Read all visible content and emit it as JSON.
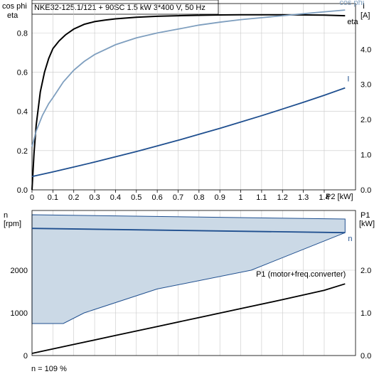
{
  "title": "NKE32-125.1/121 + 90SC   1.5 kW   3*400 V, 50 Hz",
  "colors": {
    "eta": "#000000",
    "cosphi": "#7f9fbf",
    "current": "#1f4f8f",
    "speed": "#1f4f8f",
    "speed_fill": "#cbd9e6",
    "power": "#000000",
    "grid": "#c8c8c8",
    "axis": "#000000"
  },
  "chart_data": [
    {
      "type": "line",
      "name": "top",
      "y_left_title_1": "cos phi",
      "y_left_title_2": "eta",
      "y_right_title_1": "I",
      "y_right_title_2": "[A]",
      "x_title": "P2 [kW]",
      "x_ticks": [
        "0",
        "0.1",
        "0.2",
        "0.3",
        "0.4",
        "0.5",
        "0.6",
        "0.7",
        "0.8",
        "0.9",
        "1",
        "1.1",
        "1.2",
        "1.3",
        "1.4"
      ],
      "y_left_ticks": [
        "0.0",
        "0.2",
        "0.4",
        "0.6",
        "0.8"
      ],
      "y_right_ticks": [
        "0.0",
        "1.0",
        "2.0",
        "3.0",
        "4.0"
      ],
      "xlim": [
        0,
        1.55
      ],
      "ylim_left": [
        0,
        0.95
      ],
      "ylim_right": [
        0,
        5.3
      ],
      "grid": true,
      "series": [
        {
          "name": "eta",
          "axis": "left",
          "x": [
            0,
            0.01,
            0.02,
            0.04,
            0.06,
            0.08,
            0.1,
            0.13,
            0.16,
            0.2,
            0.25,
            0.3,
            0.35,
            0.4,
            0.5,
            0.6,
            0.7,
            0.8,
            0.9,
            1.0,
            1.1,
            1.2,
            1.3,
            1.4,
            1.5
          ],
          "y": [
            0.0,
            0.19,
            0.33,
            0.5,
            0.6,
            0.67,
            0.72,
            0.76,
            0.79,
            0.82,
            0.844,
            0.858,
            0.866,
            0.872,
            0.88,
            0.885,
            0.888,
            0.89,
            0.892,
            0.893,
            0.893,
            0.893,
            0.892,
            0.891,
            0.888
          ]
        },
        {
          "name": "cos phi",
          "axis": "left",
          "x": [
            0,
            0.02,
            0.05,
            0.08,
            0.1,
            0.15,
            0.2,
            0.25,
            0.3,
            0.4,
            0.5,
            0.6,
            0.7,
            0.8,
            0.9,
            1.0,
            1.1,
            1.2,
            1.3,
            1.4,
            1.5
          ],
          "y": [
            0.22,
            0.3,
            0.38,
            0.44,
            0.47,
            0.55,
            0.61,
            0.655,
            0.69,
            0.74,
            0.775,
            0.8,
            0.82,
            0.84,
            0.855,
            0.868,
            0.878,
            0.888,
            0.898,
            0.908,
            0.917
          ]
        },
        {
          "name": "I",
          "axis": "right",
          "x": [
            0,
            0.1,
            0.2,
            0.3,
            0.4,
            0.5,
            0.6,
            0.7,
            0.8,
            0.9,
            1.0,
            1.1,
            1.2,
            1.3,
            1.4,
            1.5
          ],
          "y": [
            0.38,
            0.51,
            0.65,
            0.79,
            0.94,
            1.09,
            1.25,
            1.41,
            1.58,
            1.75,
            1.93,
            2.11,
            2.3,
            2.49,
            2.69,
            2.9
          ]
        }
      ]
    },
    {
      "type": "line",
      "name": "bottom",
      "y_left_title_1": "n",
      "y_left_title_2": "[rpm]",
      "y_right_title_1": "P1",
      "y_right_title_2": "[kW]",
      "y_left_ticks": [
        "0",
        "1000",
        "2000"
      ],
      "y_left_tick_values": [
        0,
        1000,
        2000
      ],
      "y_right_ticks": [
        "0.0",
        "1.0",
        "2.0"
      ],
      "y_right_tick_values": [
        0,
        1.0,
        2.0
      ],
      "xlim": [
        0,
        1.55
      ],
      "ylim_left": [
        0,
        3400
      ],
      "ylim_right": [
        0,
        3.4
      ],
      "grid": true,
      "n_band_upper": {
        "x": [
          0,
          1.5
        ],
        "y": [
          3300,
          3200
        ]
      },
      "n_band_lower": {
        "x": [
          0,
          0.15,
          0.25,
          0.6,
          1.05,
          1.5
        ],
        "y": [
          750,
          750,
          1000,
          1560,
          2000,
          2880
        ]
      },
      "series": [
        {
          "name": "n",
          "axis": "left",
          "x": [
            0,
            1.5
          ],
          "y": [
            2980,
            2880
          ]
        },
        {
          "name": "P1 (motor+freq.converter)",
          "axis": "right",
          "x": [
            0,
            0.2,
            0.4,
            0.6,
            0.8,
            1.0,
            1.2,
            1.4,
            1.5
          ],
          "y": [
            0.05,
            0.26,
            0.47,
            0.68,
            0.89,
            1.1,
            1.31,
            1.53,
            1.68
          ]
        }
      ]
    }
  ],
  "footer_note": "n = 109 %"
}
